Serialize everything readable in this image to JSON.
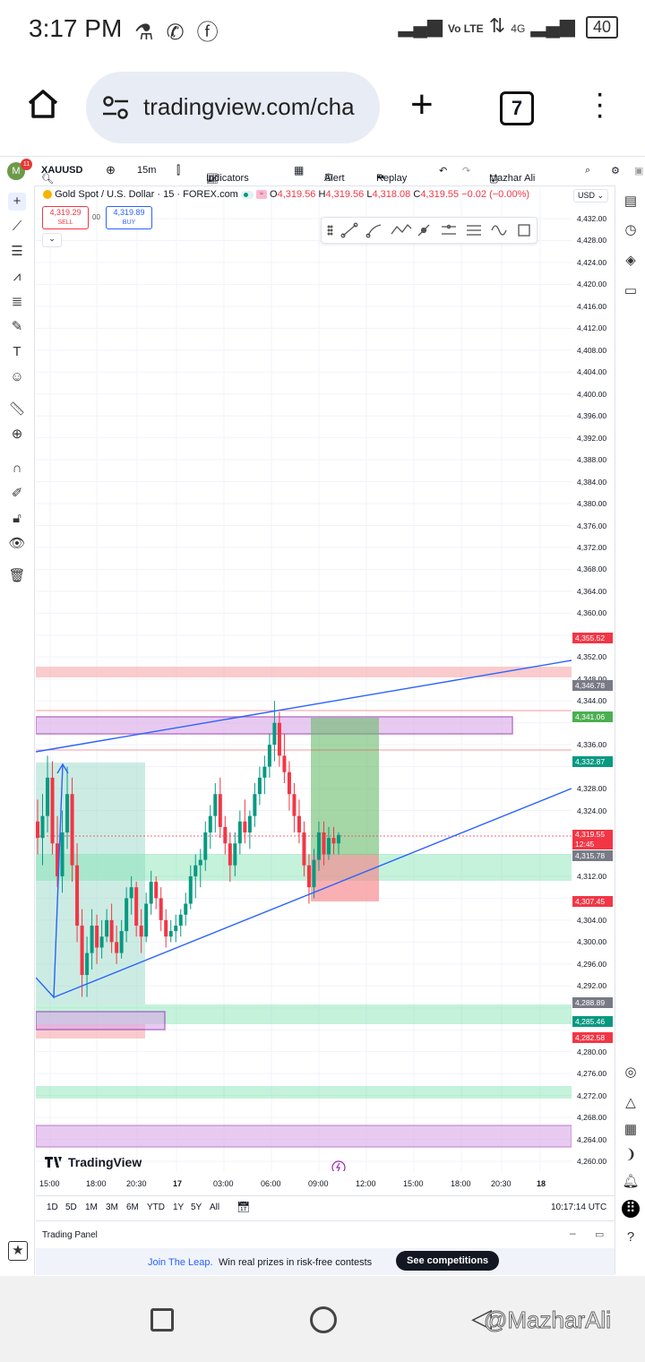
{
  "status_bar": {
    "time": "3:17 PM",
    "network_1": "Vo LTE",
    "network_2": "4G",
    "battery": "40"
  },
  "browser": {
    "url": "tradingview.com/cha",
    "tab_count": "7"
  },
  "toolbar": {
    "notifications": "11",
    "avatar_letter": "M",
    "symbol": "XAUUSD",
    "interval": "15m",
    "indicators": "Indicators",
    "alert": "Alert",
    "replay": "Replay",
    "user": "Mazhar Ali"
  },
  "legend": {
    "title": "Gold Spot / U.S. Dollar · 15 · FOREX.com",
    "o_label": "O",
    "o": "4,319.56",
    "h_label": "H",
    "h": "4,319.56",
    "l_label": "L",
    "l": "4,318.08",
    "c_label": "C",
    "c": "4,319.55",
    "change": "−0.02 (−0.00%)",
    "sell_price": "4,319.29",
    "sell_label": "SELL",
    "spread": "00",
    "buy_price": "4,319.89",
    "buy_label": "BUY"
  },
  "currency": "USD",
  "y_axis_labels": [
    "4,432.00",
    "4,428.00",
    "4,424.00",
    "4,420.00",
    "4,416.00",
    "4,412.00",
    "4,408.00",
    "4,404.00",
    "4,400.00",
    "4,396.00",
    "4,392.00",
    "4,388.00",
    "4,384.00",
    "4,380.00",
    "4,376.00",
    "4,372.00",
    "4,368.00",
    "4,364.00",
    "4,360.00",
    "4,352.00",
    "4,348.00",
    "4,344.00",
    "4,336.00",
    "4,328.00",
    "4,324.00",
    "4,312.00",
    "4,304.00",
    "4,300.00",
    "4,296.00",
    "4,292.00",
    "4,280.00",
    "4,276.00",
    "4,272.00",
    "4,268.00",
    "4,264.00",
    "4,260.00"
  ],
  "price_tags": [
    {
      "value": "4,355.52",
      "color": "#f23645"
    },
    {
      "value": "4,346.78",
      "color": "#787b86"
    },
    {
      "value": "4,341.06",
      "color": "#4caf50"
    },
    {
      "value": "4,332.87",
      "color": "#089981"
    },
    {
      "value": "4,319.55",
      "color": "#f23645",
      "sub": "12:45"
    },
    {
      "value": "4,315.78",
      "color": "#787b86"
    },
    {
      "value": "4,307.45",
      "color": "#f23645"
    },
    {
      "value": "4,288.89",
      "color": "#787b86"
    },
    {
      "value": "4,285.46",
      "color": "#089981"
    },
    {
      "value": "4,282.58",
      "color": "#f23645"
    }
  ],
  "x_axis_labels": [
    "15:00",
    "18:00",
    "20:30",
    "17",
    "03:00",
    "06:00",
    "09:00",
    "12:00",
    "15:00",
    "18:00",
    "20:30",
    "18"
  ],
  "ranges": [
    "1D",
    "5D",
    "1M",
    "3M",
    "6M",
    "YTD",
    "1Y",
    "5Y",
    "All"
  ],
  "utc_time": "10:17:14 UTC",
  "branding": "TradingView",
  "trading_panel": {
    "title": "Trading Panel",
    "promo_link": "Join The Leap.",
    "promo_text": "Win real prizes in risk-free contests",
    "promo_button": "See competitions"
  },
  "watermark": "@MazharAli",
  "chart_data": {
    "type": "candlestick",
    "y_range": [
      4258,
      4434
    ],
    "candles": [
      {
        "o": 4322,
        "h": 4326,
        "l": 4316,
        "c": 4319
      },
      {
        "o": 4319,
        "h": 4327,
        "l": 4314,
        "c": 4323
      },
      {
        "o": 4323,
        "h": 4334,
        "l": 4320,
        "c": 4330
      },
      {
        "o": 4330,
        "h": 4333,
        "l": 4316,
        "c": 4318
      },
      {
        "o": 4318,
        "h": 4323,
        "l": 4310,
        "c": 4312
      },
      {
        "o": 4312,
        "h": 4324,
        "l": 4309,
        "c": 4320
      },
      {
        "o": 4320,
        "h": 4332,
        "l": 4317,
        "c": 4327
      },
      {
        "o": 4327,
        "h": 4330,
        "l": 4311,
        "c": 4314
      },
      {
        "o": 4314,
        "h": 4318,
        "l": 4300,
        "c": 4303
      },
      {
        "o": 4303,
        "h": 4306,
        "l": 4290,
        "c": 4294
      },
      {
        "o": 4294,
        "h": 4301,
        "l": 4290,
        "c": 4298
      },
      {
        "o": 4298,
        "h": 4306,
        "l": 4295,
        "c": 4303
      },
      {
        "o": 4303,
        "h": 4305,
        "l": 4296,
        "c": 4299
      },
      {
        "o": 4299,
        "h": 4304,
        "l": 4297,
        "c": 4301
      },
      {
        "o": 4301,
        "h": 4306,
        "l": 4300,
        "c": 4304
      },
      {
        "o": 4304,
        "h": 4307,
        "l": 4298,
        "c": 4300
      },
      {
        "o": 4300,
        "h": 4303,
        "l": 4296,
        "c": 4298
      },
      {
        "o": 4298,
        "h": 4304,
        "l": 4297,
        "c": 4302
      },
      {
        "o": 4302,
        "h": 4310,
        "l": 4300,
        "c": 4308
      },
      {
        "o": 4308,
        "h": 4312,
        "l": 4305,
        "c": 4310
      },
      {
        "o": 4310,
        "h": 4311,
        "l": 4301,
        "c": 4303
      },
      {
        "o": 4303,
        "h": 4306,
        "l": 4298,
        "c": 4301
      },
      {
        "o": 4301,
        "h": 4309,
        "l": 4300,
        "c": 4307
      },
      {
        "o": 4307,
        "h": 4313,
        "l": 4305,
        "c": 4311
      },
      {
        "o": 4311,
        "h": 4312,
        "l": 4306,
        "c": 4308
      },
      {
        "o": 4308,
        "h": 4310,
        "l": 4302,
        "c": 4304
      },
      {
        "o": 4304,
        "h": 4306,
        "l": 4299,
        "c": 4301
      },
      {
        "o": 4301,
        "h": 4304,
        "l": 4300,
        "c": 4302
      },
      {
        "o": 4302,
        "h": 4305,
        "l": 4300,
        "c": 4303
      },
      {
        "o": 4303,
        "h": 4306,
        "l": 4301,
        "c": 4305
      },
      {
        "o": 4305,
        "h": 4309,
        "l": 4303,
        "c": 4307
      },
      {
        "o": 4307,
        "h": 4314,
        "l": 4306,
        "c": 4312
      },
      {
        "o": 4312,
        "h": 4316,
        "l": 4308,
        "c": 4314
      },
      {
        "o": 4314,
        "h": 4317,
        "l": 4310,
        "c": 4315
      },
      {
        "o": 4315,
        "h": 4322,
        "l": 4313,
        "c": 4320
      },
      {
        "o": 4320,
        "h": 4325,
        "l": 4317,
        "c": 4323
      },
      {
        "o": 4323,
        "h": 4329,
        "l": 4320,
        "c": 4327
      },
      {
        "o": 4327,
        "h": 4330,
        "l": 4319,
        "c": 4321
      },
      {
        "o": 4321,
        "h": 4323,
        "l": 4316,
        "c": 4318
      },
      {
        "o": 4318,
        "h": 4320,
        "l": 4311,
        "c": 4314
      },
      {
        "o": 4314,
        "h": 4320,
        "l": 4312,
        "c": 4318
      },
      {
        "o": 4318,
        "h": 4324,
        "l": 4316,
        "c": 4322
      },
      {
        "o": 4322,
        "h": 4326,
        "l": 4318,
        "c": 4320
      },
      {
        "o": 4320,
        "h": 4324,
        "l": 4317,
        "c": 4323
      },
      {
        "o": 4323,
        "h": 4329,
        "l": 4321,
        "c": 4327
      },
      {
        "o": 4327,
        "h": 4332,
        "l": 4325,
        "c": 4330
      },
      {
        "o": 4330,
        "h": 4334,
        "l": 4327,
        "c": 4332
      },
      {
        "o": 4332,
        "h": 4338,
        "l": 4330,
        "c": 4336
      },
      {
        "o": 4336,
        "h": 4344,
        "l": 4333,
        "c": 4340
      },
      {
        "o": 4340,
        "h": 4342,
        "l": 4332,
        "c": 4334
      },
      {
        "o": 4334,
        "h": 4338,
        "l": 4329,
        "c": 4331
      },
      {
        "o": 4331,
        "h": 4333,
        "l": 4324,
        "c": 4327
      },
      {
        "o": 4327,
        "h": 4329,
        "l": 4320,
        "c": 4323
      },
      {
        "o": 4323,
        "h": 4326,
        "l": 4318,
        "c": 4320
      },
      {
        "o": 4320,
        "h": 4322,
        "l": 4312,
        "c": 4314
      },
      {
        "o": 4314,
        "h": 4316,
        "l": 4307,
        "c": 4310
      },
      {
        "o": 4310,
        "h": 4317,
        "l": 4308,
        "c": 4315
      },
      {
        "o": 4315,
        "h": 4322,
        "l": 4313,
        "c": 4320
      },
      {
        "o": 4320,
        "h": 4322,
        "l": 4314,
        "c": 4316
      },
      {
        "o": 4316,
        "h": 4321,
        "l": 4315,
        "c": 4319
      },
      {
        "o": 4319,
        "h": 4321,
        "l": 4316,
        "c": 4318
      },
      {
        "o": 4318,
        "h": 4320,
        "l": 4316,
        "c": 4319.55
      }
    ]
  }
}
